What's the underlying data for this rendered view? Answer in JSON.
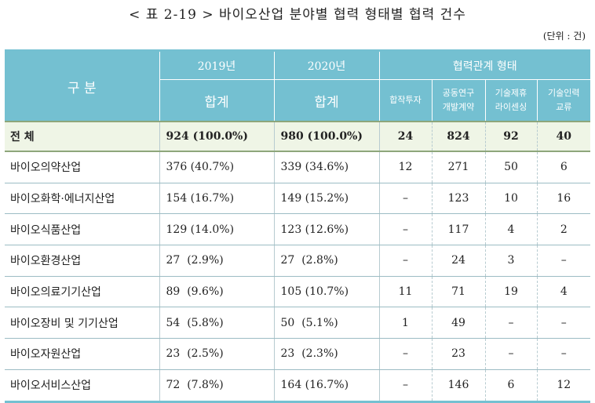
{
  "title": "< 표 2-19 > 바이오산업 분야별 협력 형태별 협력 건수",
  "unit": "(단위 : 건)",
  "header": {
    "category": "구  분",
    "y2019": "2019년",
    "y2020": "2020년",
    "types": "협력관계 형태",
    "sum2019": "합계",
    "sum2020": "합계",
    "t1": "합작투자",
    "t2a": "공동연구",
    "t2b": "개발계약",
    "t3a": "기술제휴",
    "t3b": "라이센싱",
    "t4a": "기술인력",
    "t4b": "교류"
  },
  "total": {
    "name": "전  체",
    "v2019": "924 (100.0%)",
    "v2020": "980 (100.0%)",
    "t1": "24",
    "t2": "824",
    "t3": "92",
    "t4": "40"
  },
  "rows": [
    {
      "name": "바이오의약산업",
      "v2019": "376 (40.7%)",
      "v2020": "339 (34.6%)",
      "t1": "12",
      "t2": "271",
      "t3": "50",
      "t4": "6"
    },
    {
      "name": "바이오화학·에너지산업",
      "v2019": "154 (16.7%)",
      "v2020": "149 (15.2%)",
      "t1": "–",
      "t2": "123",
      "t3": "10",
      "t4": "16"
    },
    {
      "name": "바이오식품산업",
      "v2019": "129 (14.0%)",
      "v2020": "123 (12.6%)",
      "t1": "–",
      "t2": "117",
      "t3": "4",
      "t4": "2"
    },
    {
      "name": "바이오환경산업",
      "v2019": "27  (2.9%)",
      "v2020": "27  (2.8%)",
      "t1": "–",
      "t2": "24",
      "t3": "3",
      "t4": "–"
    },
    {
      "name": "바이오의료기기산업",
      "v2019": "89  (9.6%)",
      "v2020": "105 (10.7%)",
      "t1": "11",
      "t2": "71",
      "t3": "19",
      "t4": "4"
    },
    {
      "name": "바이오장비 및 기기산업",
      "v2019": "54  (5.8%)",
      "v2020": "50  (5.1%)",
      "t1": "1",
      "t2": "49",
      "t3": "–",
      "t4": "–"
    },
    {
      "name": "바이오자원산업",
      "v2019": "23  (2.5%)",
      "v2020": "23  (2.3%)",
      "t1": "–",
      "t2": "23",
      "t3": "–",
      "t4": "–"
    },
    {
      "name": "바이오서비스산업",
      "v2019": "72  (7.8%)",
      "v2020": "164 (16.7%)",
      "t1": "–",
      "t2": "146",
      "t3": "6",
      "t4": "12"
    }
  ]
}
